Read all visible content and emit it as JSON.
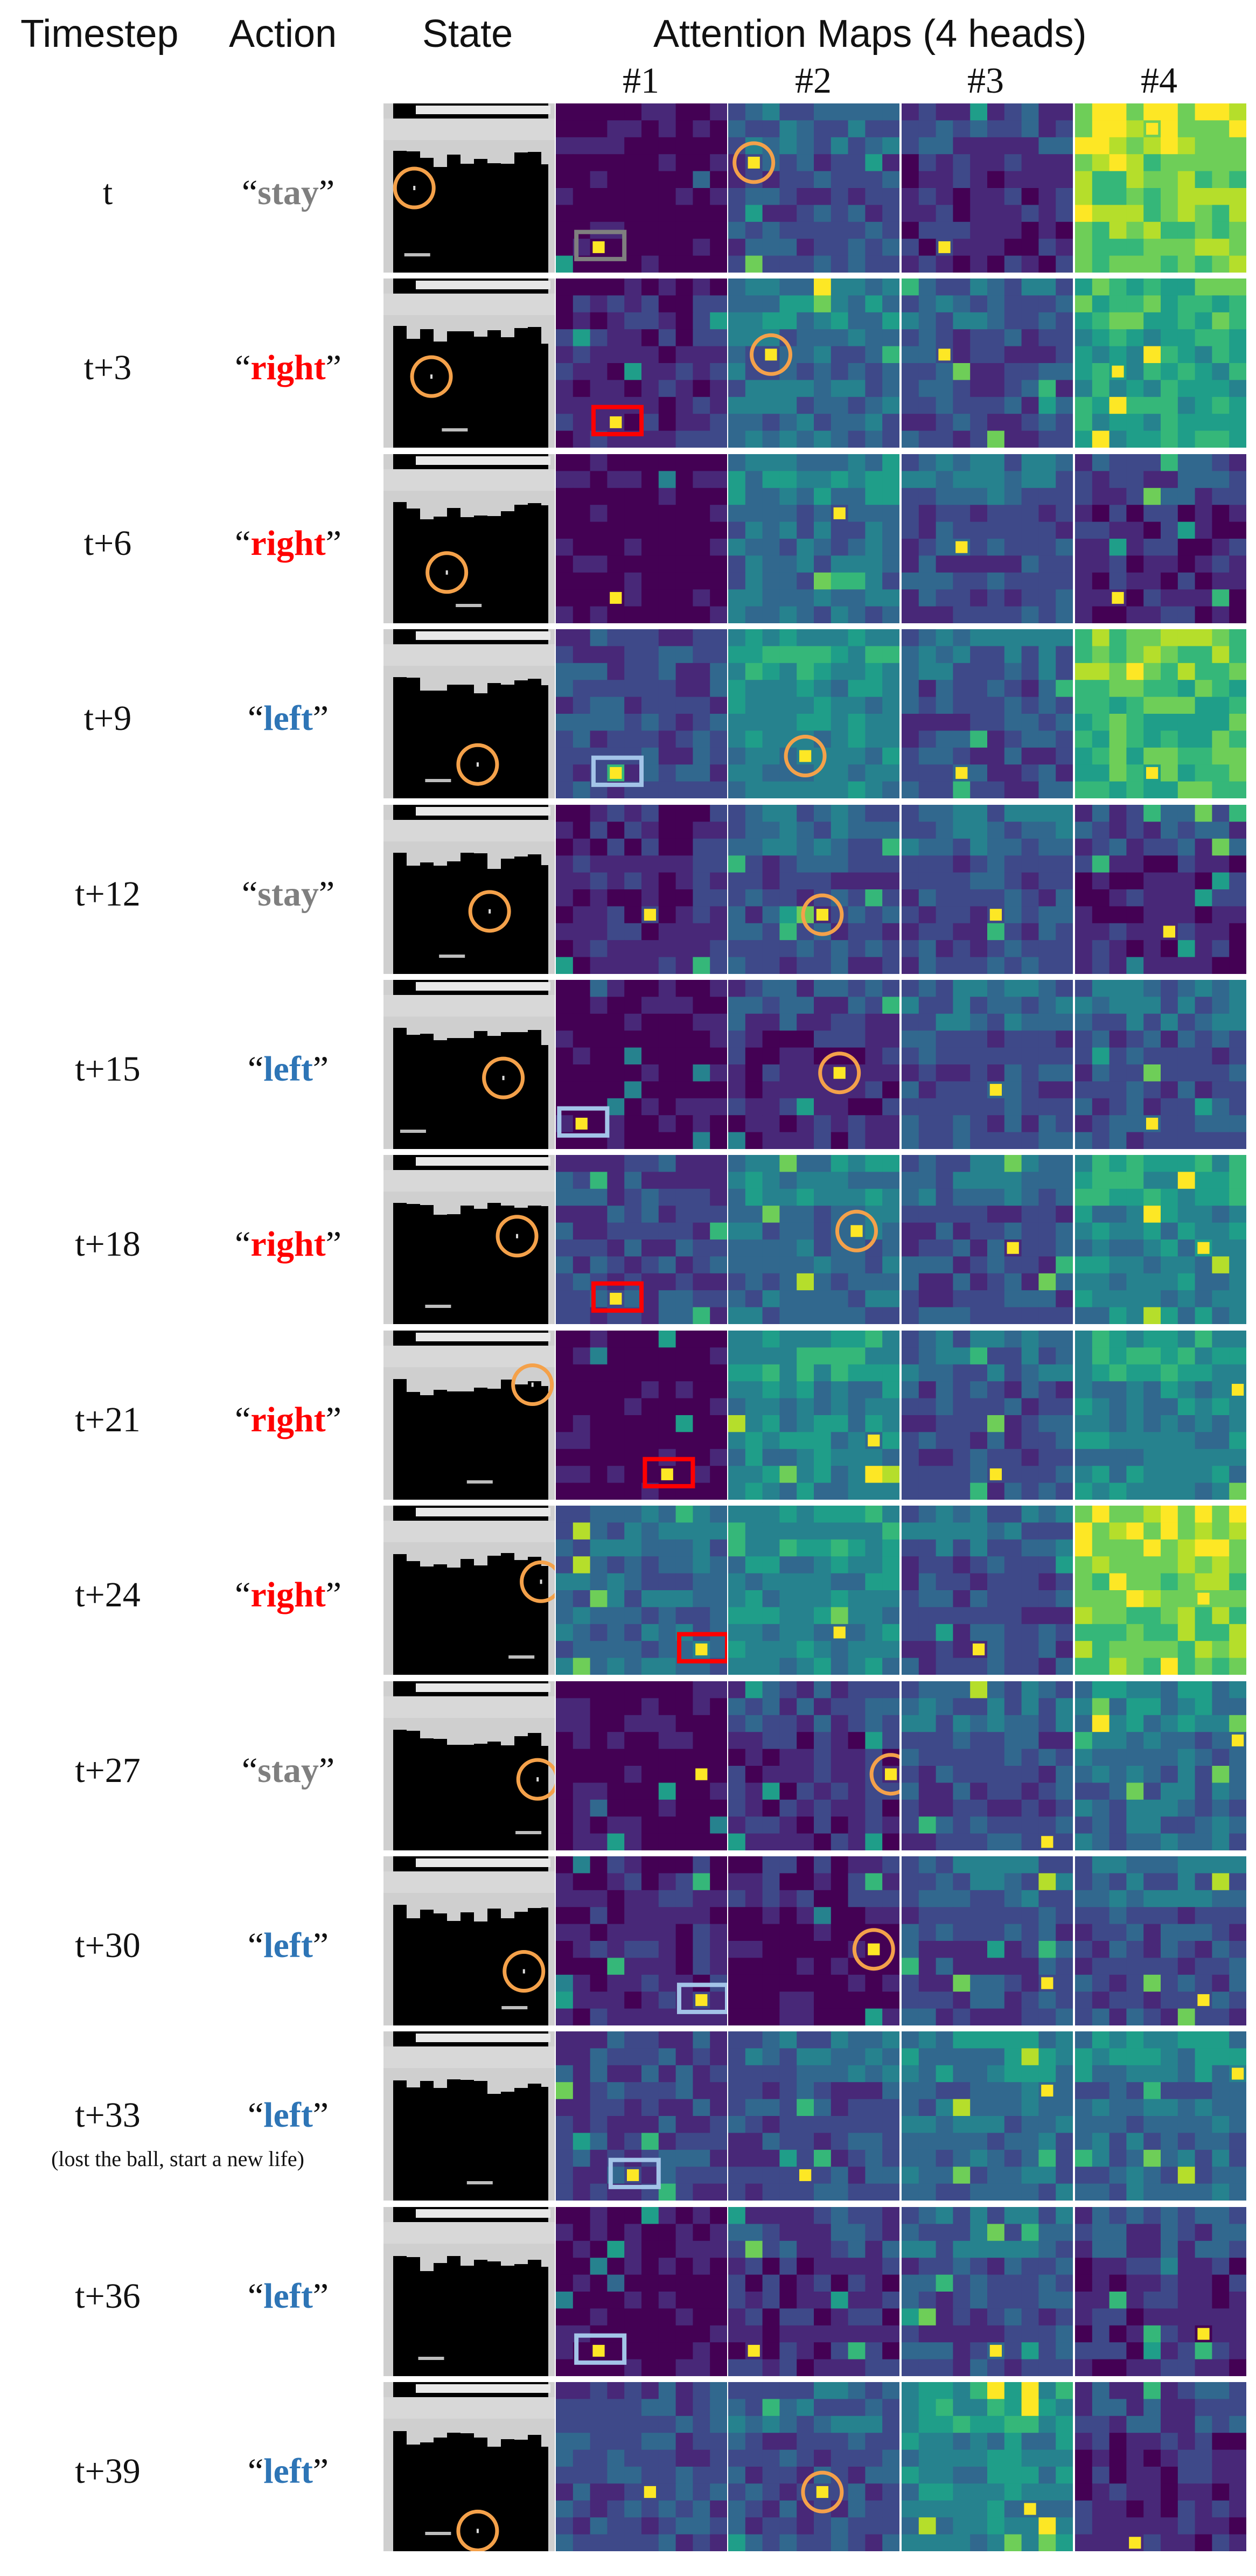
{
  "headers": {
    "timestep": "Timestep",
    "action": "Action",
    "state": "State",
    "attention": "Attention Maps (4 heads)",
    "heads": [
      "#1",
      "#2",
      "#3",
      "#4"
    ]
  },
  "colors": {
    "stay": "#7f7f7f",
    "right": "#ff0000",
    "left": "#2e75b6",
    "circle": "#f4a14a",
    "box_stay": "#7f7f7f",
    "box_right": "#ff0000",
    "box_left": "#a3c4e8"
  },
  "rows": [
    {
      "timestep": "t",
      "action": "stay",
      "note": ""
    },
    {
      "timestep": "t+3",
      "action": "right",
      "note": ""
    },
    {
      "timestep": "t+6",
      "action": "right",
      "note": ""
    },
    {
      "timestep": "t+9",
      "action": "left",
      "note": ""
    },
    {
      "timestep": "t+12",
      "action": "stay",
      "note": ""
    },
    {
      "timestep": "t+15",
      "action": "left",
      "note": ""
    },
    {
      "timestep": "t+18",
      "action": "right",
      "note": ""
    },
    {
      "timestep": "t+21",
      "action": "right",
      "note": ""
    },
    {
      "timestep": "t+24",
      "action": "right",
      "note": ""
    },
    {
      "timestep": "t+27",
      "action": "stay",
      "note": ""
    },
    {
      "timestep": "t+30",
      "action": "left",
      "note": ""
    },
    {
      "timestep": "t+33",
      "action": "left",
      "note": "(lost the ball, start a new life)"
    },
    {
      "timestep": "t+36",
      "action": "left",
      "note": ""
    },
    {
      "timestep": "t+39",
      "action": "left",
      "note": ""
    }
  ]
}
